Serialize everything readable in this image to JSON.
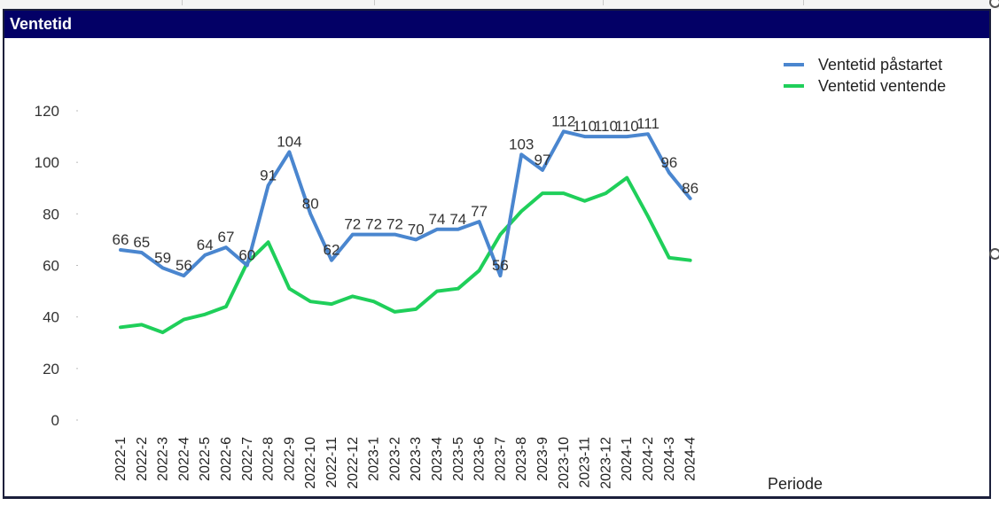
{
  "window": {
    "title": "Ventetid"
  },
  "chart_data": {
    "type": "line",
    "title": "",
    "xlabel": "Periode",
    "ylabel": "",
    "ylim": [
      0,
      120
    ],
    "yticks": [
      0,
      20,
      40,
      60,
      80,
      100,
      120
    ],
    "grid": false,
    "legend_position": "top-right",
    "categories": [
      "2022-1",
      "2022-2",
      "2022-3",
      "2022-4",
      "2022-5",
      "2022-6",
      "2022-7",
      "2022-8",
      "2022-9",
      "2022-10",
      "2022-11",
      "2022-12",
      "2023-1",
      "2023-2",
      "2023-3",
      "2023-4",
      "2023-5",
      "2023-6",
      "2023-7",
      "2023-8",
      "2023-9",
      "2023-10",
      "2023-11",
      "2023-12",
      "2024-1",
      "2024-2",
      "2024-3",
      "2024-4"
    ],
    "series": [
      {
        "name": "Ventetid påstartet",
        "color": "#4a86cf",
        "show_labels": true,
        "values": [
          66,
          65,
          59,
          56,
          64,
          67,
          60,
          91,
          104,
          80,
          62,
          72,
          72,
          72,
          70,
          74,
          74,
          77,
          56,
          103,
          97,
          112,
          110,
          110,
          110,
          111,
          96,
          86
        ]
      },
      {
        "name": "Ventetid ventende",
        "color": "#1fcf5a",
        "show_labels": false,
        "values": [
          36,
          37,
          34,
          39,
          41,
          44,
          61,
          69,
          51,
          46,
          45,
          48,
          46,
          42,
          43,
          50,
          51,
          58,
          72,
          81,
          88,
          88,
          85,
          88,
          94,
          79,
          63,
          62
        ]
      }
    ]
  }
}
